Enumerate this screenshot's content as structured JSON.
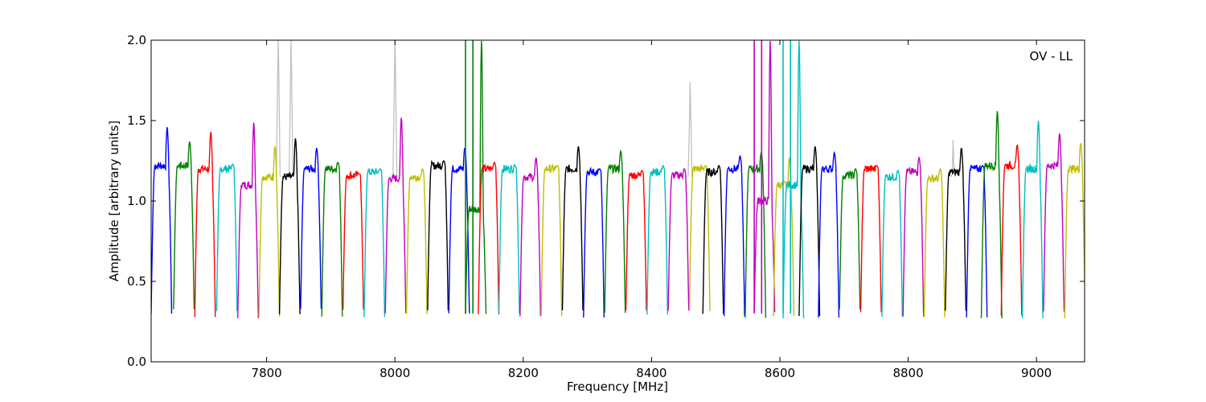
{
  "chart_data": {
    "type": "line",
    "xlabel": "Frequency [MHz]",
    "ylabel": "Amplitude [arbitrary units]",
    "annotation": "OV - LL",
    "xlim": [
      7620,
      9075
    ],
    "ylim": [
      0.0,
      2.0
    ],
    "xticks": [
      7800,
      8000,
      8200,
      8400,
      8600,
      8800,
      9000
    ],
    "yticks": [
      0.0,
      0.5,
      1.0,
      1.5,
      2.0
    ],
    "xtick_labels": [
      "7800",
      "8000",
      "8200",
      "8400",
      "8600",
      "8800",
      "9000"
    ],
    "ytick_labels": [
      "0.0",
      "0.5",
      "1.0",
      "1.5",
      "2.0"
    ],
    "grid": false,
    "legend": "none",
    "background_series": {
      "color": "#c0c0c0",
      "note_spikes": [
        [
          7818,
          2.0
        ],
        [
          7838,
          2.0
        ],
        [
          8000,
          2.0
        ],
        [
          8460,
          1.74
        ],
        [
          8870,
          1.38
        ]
      ]
    },
    "channel_width_mhz": 32,
    "channels": [
      {
        "start": 7620,
        "color": "#0000ff",
        "peak": 1.46,
        "level": 1.22
      },
      {
        "start": 7655,
        "color": "#008000",
        "peak": 1.37,
        "level": 1.22
      },
      {
        "start": 7688,
        "color": "#ff0000",
        "peak": 1.43,
        "level": 1.2
      },
      {
        "start": 7722,
        "color": "#00bfbf",
        "peak": 1.23,
        "level": 1.2
      },
      {
        "start": 7755,
        "color": "#bf00bf",
        "peak": 1.49,
        "level": 1.1
      },
      {
        "start": 7788,
        "color": "#bfbf00",
        "peak": 1.34,
        "level": 1.15
      },
      {
        "start": 7820,
        "color": "#000000",
        "peak": 1.39,
        "level": 1.15
      },
      {
        "start": 7853,
        "color": "#0000ff",
        "peak": 1.33,
        "level": 1.2
      },
      {
        "start": 7886,
        "color": "#008000",
        "peak": 1.24,
        "level": 1.2
      },
      {
        "start": 7919,
        "color": "#ff0000",
        "peak": 1.17,
        "level": 1.16
      },
      {
        "start": 7952,
        "color": "#00bfbf",
        "peak": 1.2,
        "level": 1.18
      },
      {
        "start": 7985,
        "color": "#bf00bf",
        "peak": 1.52,
        "level": 1.14
      },
      {
        "start": 8018,
        "color": "#bfbf00",
        "peak": 1.2,
        "level": 1.15
      },
      {
        "start": 8051,
        "color": "#000000",
        "peak": 1.25,
        "level": 1.22
      },
      {
        "start": 8084,
        "color": "#0000ff",
        "peak": 1.33,
        "level": 1.2
      },
      {
        "start": 8110,
        "color": "#008000",
        "peak": 2.0,
        "level": 0.95
      },
      {
        "start": 8130,
        "color": "#ff0000",
        "peak": 1.24,
        "level": 1.2
      },
      {
        "start": 8162,
        "color": "#00bfbf",
        "peak": 1.22,
        "level": 1.2
      },
      {
        "start": 8195,
        "color": "#bf00bf",
        "peak": 1.27,
        "level": 1.15
      },
      {
        "start": 8228,
        "color": "#bfbf00",
        "peak": 1.22,
        "level": 1.2
      },
      {
        "start": 8261,
        "color": "#000000",
        "peak": 1.34,
        "level": 1.2
      },
      {
        "start": 8294,
        "color": "#0000ff",
        "peak": 1.2,
        "level": 1.18
      },
      {
        "start": 8327,
        "color": "#008000",
        "peak": 1.31,
        "level": 1.2
      },
      {
        "start": 8360,
        "color": "#ff0000",
        "peak": 1.19,
        "level": 1.16
      },
      {
        "start": 8393,
        "color": "#00bfbf",
        "peak": 1.22,
        "level": 1.18
      },
      {
        "start": 8426,
        "color": "#bf00bf",
        "peak": 1.2,
        "level": 1.16
      },
      {
        "start": 8459,
        "color": "#bfbf00",
        "peak": 1.22,
        "level": 1.2
      },
      {
        "start": 8480,
        "color": "#000000",
        "peak": 1.22,
        "level": 1.18
      },
      {
        "start": 8513,
        "color": "#0000ff",
        "peak": 1.28,
        "level": 1.2
      },
      {
        "start": 8546,
        "color": "#008000",
        "peak": 1.3,
        "level": 1.2
      },
      {
        "start": 8560,
        "color": "#bf00bf",
        "peak": 2.0,
        "level": 1.0
      },
      {
        "start": 8590,
        "color": "#bfbf00",
        "peak": 1.27,
        "level": 1.1
      },
      {
        "start": 8605,
        "color": "#00bfbf",
        "peak": 2.0,
        "level": 1.1
      },
      {
        "start": 8630,
        "color": "#000000",
        "peak": 1.34,
        "level": 1.2
      },
      {
        "start": 8660,
        "color": "#0000ff",
        "peak": 1.3,
        "level": 1.2
      },
      {
        "start": 8693,
        "color": "#008000",
        "peak": 1.2,
        "level": 1.16
      },
      {
        "start": 8726,
        "color": "#ff0000",
        "peak": 1.22,
        "level": 1.2
      },
      {
        "start": 8759,
        "color": "#00bfbf",
        "peak": 1.19,
        "level": 1.15
      },
      {
        "start": 8792,
        "color": "#bf00bf",
        "peak": 1.27,
        "level": 1.18
      },
      {
        "start": 8825,
        "color": "#bfbf00",
        "peak": 1.2,
        "level": 1.14
      },
      {
        "start": 8858,
        "color": "#000000",
        "peak": 1.33,
        "level": 1.18
      },
      {
        "start": 8891,
        "color": "#0000ff",
        "peak": 1.22,
        "level": 1.2
      },
      {
        "start": 8914,
        "color": "#008000",
        "peak": 1.56,
        "level": 1.22
      },
      {
        "start": 8945,
        "color": "#ff0000",
        "peak": 1.35,
        "level": 1.22
      },
      {
        "start": 8978,
        "color": "#00bfbf",
        "peak": 1.5,
        "level": 1.2
      },
      {
        "start": 9011,
        "color": "#bf00bf",
        "peak": 1.42,
        "level": 1.22
      },
      {
        "start": 9044,
        "color": "#bfbf00",
        "peak": 1.36,
        "level": 1.2
      }
    ],
    "min_level": 0.27
  }
}
